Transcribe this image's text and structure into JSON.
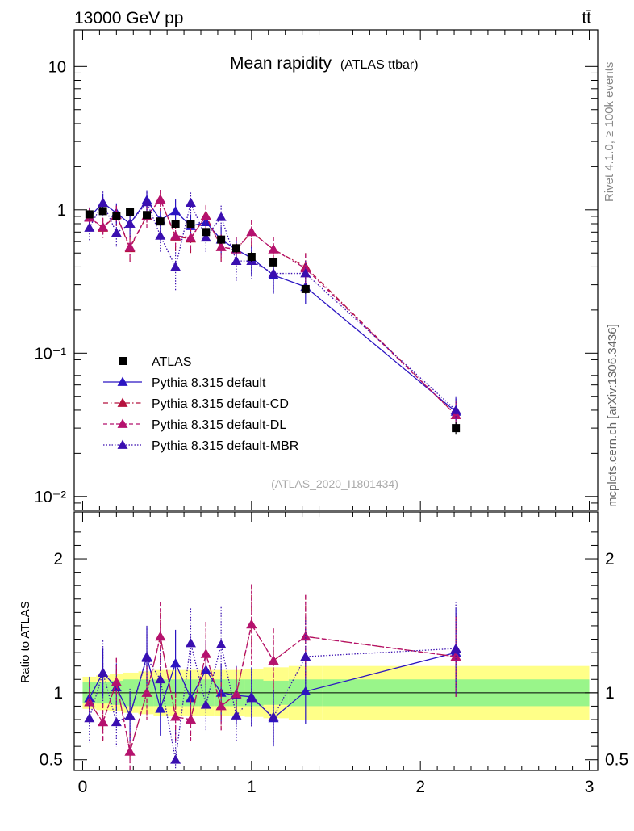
{
  "header": {
    "energy_label": "13000 GeV pp",
    "process_label": "tt̄",
    "side_label_top": "Rivet 4.1.0, ≥ 100k events",
    "side_label_bottom": "mcplots.cern.ch [arXiv:1306.3436]"
  },
  "chart_data": {
    "type": "scatter",
    "title": "Mean rapidity",
    "subtitle": "(ATLAS ttbar)",
    "analysis_label": "(ATLAS_2020_I1801434)",
    "xlabel": "",
    "ylabel_main": "",
    "ylabel_ratio": "Ratio to ATLAS",
    "xlim": [
      -0.05,
      3.05
    ],
    "ylim_main": [
      0.008,
      18
    ],
    "yscale_main": "log",
    "ylim_ratio": [
      0.42,
      2.35
    ],
    "x_ticks": [
      "0",
      "1",
      "2",
      "3"
    ],
    "y_ticks_main": [
      "10",
      "1",
      "10⁻¹",
      "10⁻²"
    ],
    "y_ticks_ratio": [
      "2",
      "1",
      "0.5"
    ],
    "bands": {
      "green_halfwidth": [
        0.08,
        0.08,
        0.09,
        0.1,
        0.1,
        0.1,
        0.1,
        0.1,
        0.1,
        0.1,
        0.1,
        0.1,
        0.09,
        0.1,
        0.1,
        0.11
      ],
      "yellow_halfwidth": [
        0.12,
        0.13,
        0.14,
        0.15,
        0.16,
        0.17,
        0.17,
        0.17,
        0.17,
        0.17,
        0.17,
        0.18,
        0.19,
        0.2,
        0.2,
        0.22
      ]
    },
    "x_bins": [
      [
        0.0,
        0.08
      ],
      [
        0.08,
        0.16
      ],
      [
        0.16,
        0.24
      ],
      [
        0.24,
        0.33
      ],
      [
        0.33,
        0.42
      ],
      [
        0.42,
        0.51
      ],
      [
        0.51,
        0.6
      ],
      [
        0.6,
        0.69
      ],
      [
        0.69,
        0.78
      ],
      [
        0.78,
        0.87
      ],
      [
        0.87,
        0.96
      ],
      [
        0.96,
        1.07
      ],
      [
        1.07,
        1.22
      ],
      [
        1.22,
        1.42
      ],
      [
        1.42,
        3.0
      ]
    ],
    "series": [
      {
        "name": "ATLAS",
        "color": "#000000",
        "marker": "square",
        "x": [
          0.04,
          0.12,
          0.2,
          0.28,
          0.38,
          0.46,
          0.55,
          0.64,
          0.73,
          0.82,
          0.91,
          1.0,
          1.13,
          1.32,
          2.21
        ],
        "y": [
          0.93,
          0.98,
          0.91,
          0.97,
          0.92,
          0.83,
          0.8,
          0.8,
          0.7,
          0.62,
          0.54,
          0.47,
          0.43,
          0.28,
          0.03
        ],
        "err": [
          0.05,
          0.05,
          0.05,
          0.05,
          0.05,
          0.05,
          0.05,
          0.05,
          0.04,
          0.04,
          0.04,
          0.04,
          0.03,
          0.02,
          0.003
        ]
      },
      {
        "name": "Pythia 8.315 default",
        "color": "#2b14c2",
        "linestyle": "solid",
        "x": [
          0.04,
          0.12,
          0.2,
          0.28,
          0.38,
          0.46,
          0.55,
          0.64,
          0.73,
          0.82,
          0.91,
          1.0,
          1.13,
          1.32,
          2.21
        ],
        "y": [
          0.89,
          1.12,
          0.95,
          0.8,
          1.17,
          0.85,
          0.98,
          0.77,
          0.82,
          0.62,
          0.53,
          0.46,
          0.35,
          0.29,
          0.039
        ],
        "err": [
          0.15,
          0.18,
          0.16,
          0.15,
          0.2,
          0.18,
          0.2,
          0.16,
          0.16,
          0.14,
          0.12,
          0.11,
          0.09,
          0.07,
          0.01
        ],
        "ratio": [
          0.96,
          1.15,
          1.04,
          0.83,
          1.27,
          0.88,
          1.22,
          0.96,
          1.17,
          1.0,
          0.98,
          0.97,
          0.81,
          1.01,
          1.3
        ],
        "ratio_err": [
          0.16,
          0.18,
          0.18,
          0.18,
          0.22,
          0.2,
          0.25,
          0.2,
          0.22,
          0.22,
          0.22,
          0.22,
          0.21,
          0.24,
          0.33
        ]
      },
      {
        "name": "Pythia 8.315 default-CD",
        "color": "#b5123e",
        "linestyle": "dashdot",
        "x": [
          0.04,
          0.12,
          0.2,
          0.28,
          0.38,
          0.46,
          0.55,
          0.64,
          0.73,
          0.82,
          0.91,
          1.0,
          1.13,
          1.32,
          2.21
        ],
        "y": [
          0.88,
          0.75,
          0.92,
          0.54,
          0.91,
          1.18,
          0.65,
          0.63,
          0.91,
          0.55,
          0.53,
          0.7,
          0.53,
          0.4,
          0.037
        ],
        "err": [
          0.14,
          0.12,
          0.15,
          0.12,
          0.16,
          0.2,
          0.14,
          0.13,
          0.17,
          0.12,
          0.12,
          0.15,
          0.12,
          0.1,
          0.009
        ],
        "ratio": [
          0.93,
          0.78,
          1.08,
          0.56,
          1.0,
          1.42,
          0.82,
          0.8,
          1.29,
          0.9,
          0.99,
          1.51,
          1.24,
          1.42,
          1.27
        ],
        "ratio_err": [
          0.15,
          0.14,
          0.18,
          0.14,
          0.2,
          0.26,
          0.18,
          0.16,
          0.24,
          0.18,
          0.2,
          0.3,
          0.24,
          0.31,
          0.3
        ]
      },
      {
        "name": "Pythia 8.315 default-DL",
        "color": "#b5126e",
        "linestyle": "dashed",
        "x": [
          0.04,
          0.12,
          0.2,
          0.28,
          0.38,
          0.46,
          0.55,
          0.64,
          0.73,
          0.82,
          0.91,
          1.0,
          1.13,
          1.32,
          2.21
        ],
        "y": [
          0.88,
          0.76,
          0.92,
          0.55,
          0.91,
          1.18,
          0.66,
          0.64,
          0.9,
          0.55,
          0.53,
          0.7,
          0.53,
          0.39,
          0.037
        ],
        "err": [
          0.14,
          0.12,
          0.15,
          0.12,
          0.16,
          0.2,
          0.14,
          0.13,
          0.17,
          0.12,
          0.12,
          0.15,
          0.12,
          0.1,
          0.009
        ],
        "ratio": [
          0.93,
          0.78,
          1.08,
          0.56,
          1.0,
          1.42,
          0.82,
          0.8,
          1.29,
          0.9,
          0.99,
          1.51,
          1.24,
          1.42,
          1.27
        ],
        "ratio_err": [
          0.15,
          0.14,
          0.18,
          0.14,
          0.2,
          0.26,
          0.18,
          0.16,
          0.24,
          0.18,
          0.2,
          0.3,
          0.24,
          0.31,
          0.3
        ]
      },
      {
        "name": "Pythia 8.315 default-MBR",
        "color": "#3a0fb0",
        "linestyle": "dotted",
        "x": [
          0.04,
          0.12,
          0.2,
          0.28,
          0.38,
          0.46,
          0.55,
          0.64,
          0.73,
          0.82,
          0.91,
          1.0,
          1.13,
          1.32,
          2.21
        ],
        "y": [
          0.75,
          1.12,
          0.69,
          0.8,
          1.13,
          0.66,
          0.4,
          1.12,
          0.64,
          0.89,
          0.44,
          0.44,
          0.36,
          0.36,
          0.04
        ],
        "err": [
          0.15,
          0.22,
          0.14,
          0.15,
          0.2,
          0.16,
          0.13,
          0.2,
          0.14,
          0.18,
          0.12,
          0.11,
          0.09,
          0.08,
          0.01
        ],
        "ratio": [
          0.81,
          1.15,
          0.78,
          0.83,
          1.26,
          1.1,
          0.5,
          1.37,
          0.91,
          1.36,
          0.83,
          0.96,
          0.82,
          1.27,
          1.33
        ],
        "ratio_err": [
          0.18,
          0.24,
          0.18,
          0.2,
          0.24,
          0.22,
          0.22,
          0.26,
          0.2,
          0.28,
          0.2,
          0.22,
          0.2,
          0.27,
          0.35
        ]
      }
    ]
  }
}
